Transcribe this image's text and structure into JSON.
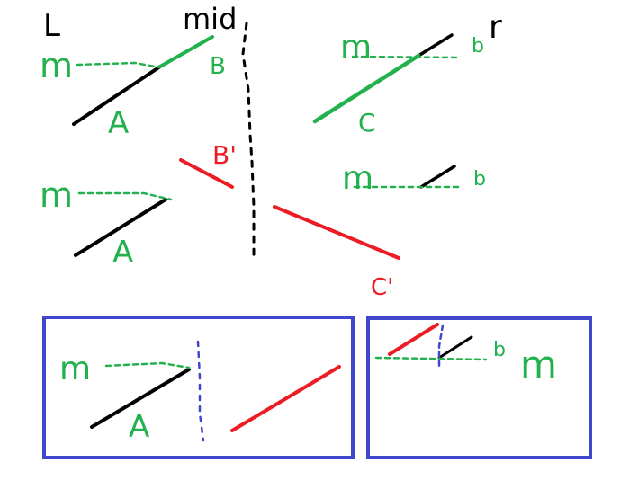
{
  "headings": {
    "left": "L",
    "mid": "mid",
    "right": "r"
  },
  "labels": {
    "m_top_left": "m",
    "m_top_right": "m",
    "m_mid_left": "m",
    "m_mid_right": "m",
    "m_box_left": "m",
    "m_box_right": "m",
    "a_top": "A",
    "a_mid": "A",
    "a_box": "A",
    "b_top": "B",
    "b_red": "B'",
    "c_top": "C",
    "c_red": "C'",
    "b_top_right": "b",
    "b_mid_right": "b",
    "b_box_right": "b"
  },
  "colors": {
    "black": "#000000",
    "green": "#22b14c",
    "red": "#ed1c24",
    "blue": "#3f48cc",
    "background": "#ffffff"
  }
}
